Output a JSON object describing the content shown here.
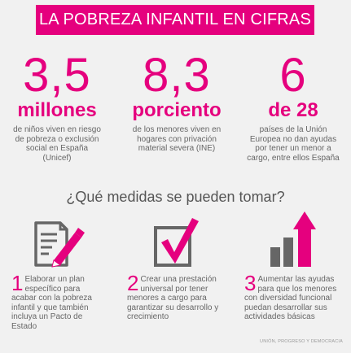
{
  "title": "LA POBREZA INFANTIL EN CIFRAS",
  "stats": [
    {
      "number": "3,5",
      "unit": "millones",
      "description": "de niños viven en riesgo de pobreza o exclusión social en España (Unicef)"
    },
    {
      "number": "8,3",
      "unit": "porciento",
      "description": "de los menores viven en hogares con privación material severa (INE)"
    },
    {
      "number": "6",
      "unit": "de 28",
      "description": "países de la Unión Europea no dan ayudas por tener un menor a cargo, entre ellos España"
    }
  ],
  "question": "¿Qué medidas se pueden tomar?",
  "measures": [
    {
      "num": "1",
      "text": "Elaborar un plan específico para acabar con la pobreza infantil y que también incluya un Pacto de Estado",
      "icon": "document-pen-icon"
    },
    {
      "num": "2",
      "text": "Crear una prestación universal por tener menores a cargo para garantizar su desarrollo y crecimiento",
      "icon": "checkbox-icon"
    },
    {
      "num": "3",
      "text": "Aumentar las ayudas para que los menores con diversidad funcional puedan desarrollar sus actividades básicas",
      "icon": "growth-chart-icon"
    }
  ],
  "footer": "UNIÓN, PROGRESO Y DEMOCRACIA",
  "colors": {
    "accent": "#e5007e",
    "icon_gray": "#666666",
    "background": "#f1f1f1"
  }
}
